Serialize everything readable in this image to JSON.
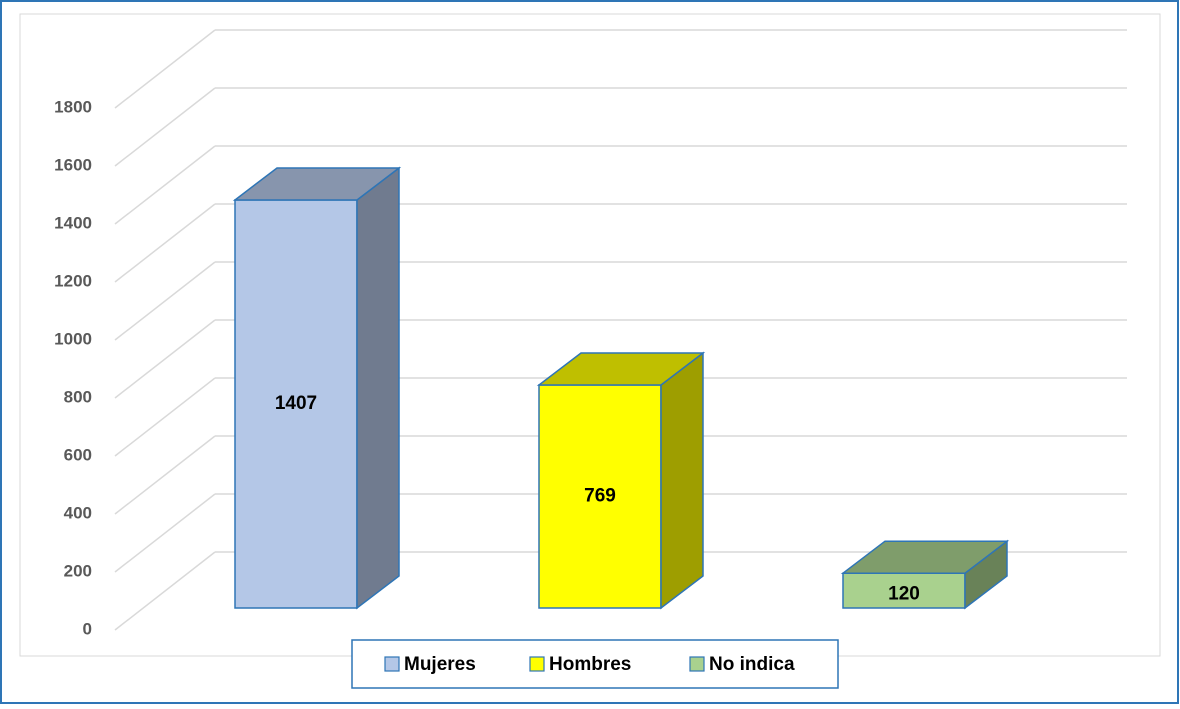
{
  "chart_data": {
    "type": "bar3d",
    "categories": [
      "Mujeres",
      "Hombres",
      "No indica"
    ],
    "series": [
      {
        "name": "Mujeres",
        "color": "#b4c7e7",
        "values": [
          1407,
          null,
          null
        ]
      },
      {
        "name": "Hombres",
        "color": "#ffff00",
        "values": [
          null,
          769,
          null
        ]
      },
      {
        "name": "No indica",
        "color": "#a9d18e",
        "values": [
          null,
          null,
          120
        ]
      }
    ],
    "ylim": [
      0,
      1800
    ],
    "yticks": [
      0,
      200,
      400,
      600,
      800,
      1000,
      1200,
      1400,
      1600,
      1800
    ],
    "grid": true,
    "legend": "bottom"
  }
}
